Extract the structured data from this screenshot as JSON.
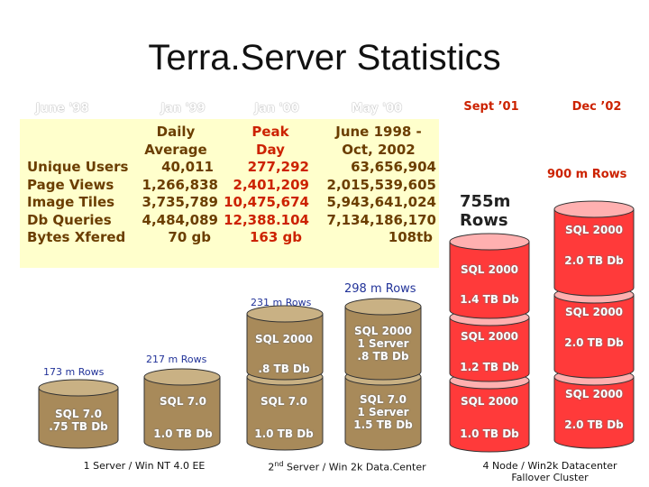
{
  "title": "Terra.Server Statistics",
  "dates": [
    "June '98",
    "Jan '99",
    "Jan '00",
    "May '00",
    "Sept ’01",
    "Dec ’02"
  ],
  "stats": {
    "row_labels": [
      "Unique Users",
      "Page Views",
      "Image Tiles",
      "Db Queries",
      "Bytes Xfered"
    ],
    "daily_average": {
      "header": [
        "Daily",
        "Average"
      ],
      "values": [
        "40,011",
        "1,266,838",
        "3,735,789",
        "4,484,089",
        "70 gb"
      ]
    },
    "peak_day": {
      "header": [
        "Peak",
        "Day"
      ],
      "values": [
        "277,292",
        "2,401,209",
        "10,475,674",
        "12,388.104",
        "163 gb"
      ]
    },
    "total": {
      "header": [
        "June 1998 -",
        "Oct, 2002"
      ],
      "values": [
        "63,656,904",
        "2,015,539,605",
        "5,943,641,024",
        "7,134,186,170",
        "108tb"
      ]
    }
  },
  "rows_labels": {
    "june98": "173 m Rows",
    "jan99": "217 m Rows",
    "jan00": "231 m Rows",
    "may00": "298 m Rows",
    "sept01": "755m Rows",
    "dec02": "900 m Rows"
  },
  "cylinders": {
    "june98": [
      "SQL 7.0\n.75 TB Db"
    ],
    "jan99": [
      "SQL 7.0",
      "1.0 TB Db"
    ],
    "jan00": [
      "SQL 2000",
      ".8 TB Db",
      "SQL 7.0",
      "1.0 TB Db"
    ],
    "may00": [
      "SQL 2000\n1 Server\n.8 TB Db",
      "SQL 7.0\n1 Server\n1.5 TB Db"
    ],
    "sept01": [
      "SQL 2000",
      "1.4 TB Db",
      "SQL 2000",
      "1.2 TB Db",
      "SQL 2000",
      "1.0 TB Db"
    ],
    "dec02": [
      "SQL 2000",
      "2.0 TB Db",
      "SQL 2000",
      "2.0 TB Db",
      "SQL 2000",
      "2.0 TB Db"
    ]
  },
  "footers": {
    "first": "1 Server / Win NT 4.0 EE",
    "second_pre": "2",
    "second_sup": "nd",
    "second_post": " Server / Win 2k Data.Center",
    "third_line1": "4 Node / Win2k Datacenter",
    "third_line2": "Fallover Cluster"
  },
  "colors": {
    "cylinder_fill": "#a88a5a",
    "cylinder_top": "#c9b184",
    "cluster_fill": "#ff3a3a",
    "cluster_top": "#ffb0b0",
    "table_bg": "#ffffcc"
  }
}
